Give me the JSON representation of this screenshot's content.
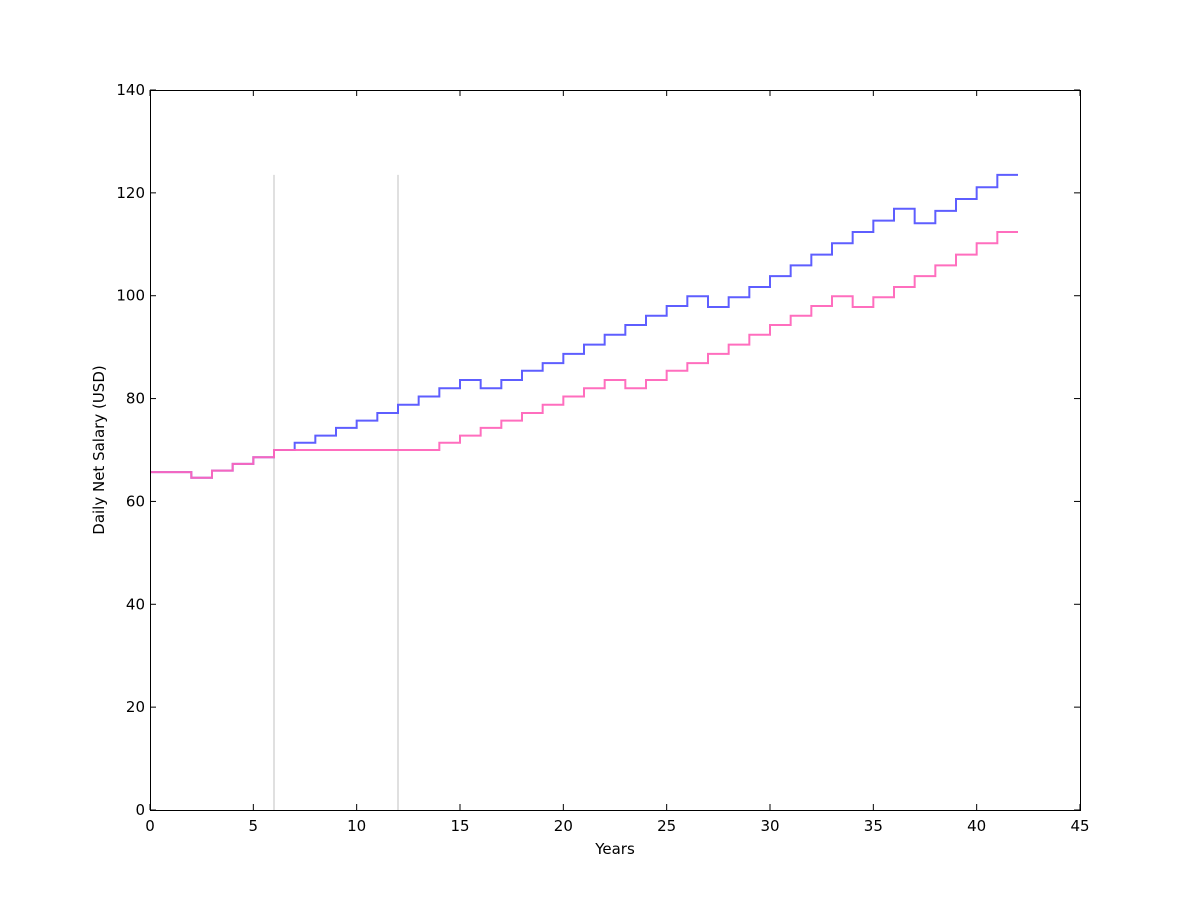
{
  "chart_data": {
    "type": "line",
    "drawstyle": "steps-post",
    "title": "",
    "xlabel": "Years",
    "ylabel": "Daily Net Salary (USD)",
    "xlim": [
      0,
      45
    ],
    "ylim": [
      0,
      140
    ],
    "xticks": [
      0,
      5,
      10,
      15,
      20,
      25,
      30,
      35,
      40,
      45
    ],
    "yticks": [
      0,
      20,
      40,
      60,
      80,
      100,
      120,
      140
    ],
    "grid": false,
    "x": [
      0,
      1,
      2,
      3,
      4,
      5,
      6,
      7,
      8,
      9,
      10,
      11,
      12,
      13,
      14,
      15,
      16,
      17,
      18,
      19,
      20,
      21,
      22,
      23,
      24,
      25,
      26,
      27,
      28,
      29,
      30,
      31,
      32,
      33,
      34,
      35,
      36,
      37,
      38,
      39,
      40,
      41,
      42
    ],
    "series": [
      {
        "color": "#5555ff",
        "values": [
          65.7,
          65.7,
          64.6,
          66.0,
          67.3,
          68.6,
          70.0,
          71.4,
          72.8,
          74.3,
          75.7,
          77.2,
          78.8,
          80.4,
          82.0,
          83.6,
          82.0,
          83.6,
          85.4,
          86.9,
          88.7,
          90.5,
          92.4,
          94.3,
          96.1,
          98.0,
          99.9,
          97.8,
          99.7,
          101.7,
          103.8,
          105.9,
          108.0,
          110.2,
          112.4,
          114.6,
          116.9,
          114.1,
          116.5,
          118.8,
          121.1,
          123.5,
          123.5
        ]
      },
      {
        "color": "#ff66bb",
        "values": [
          65.7,
          65.7,
          64.6,
          66.0,
          67.3,
          68.6,
          70.0,
          70.0,
          70.0,
          70.0,
          70.0,
          70.0,
          70.0,
          70.0,
          71.4,
          72.8,
          74.3,
          75.7,
          77.2,
          78.8,
          80.4,
          82.0,
          83.6,
          82.0,
          83.6,
          85.4,
          86.9,
          88.7,
          90.5,
          92.4,
          94.3,
          96.1,
          98.0,
          99.9,
          97.8,
          99.7,
          101.7,
          103.8,
          105.9,
          108.0,
          110.2,
          112.4,
          112.4
        ]
      }
    ],
    "vlines": {
      "x": [
        6,
        12
      ],
      "ymin": 0,
      "ymax": 123.5,
      "color": "#cccccc"
    }
  }
}
